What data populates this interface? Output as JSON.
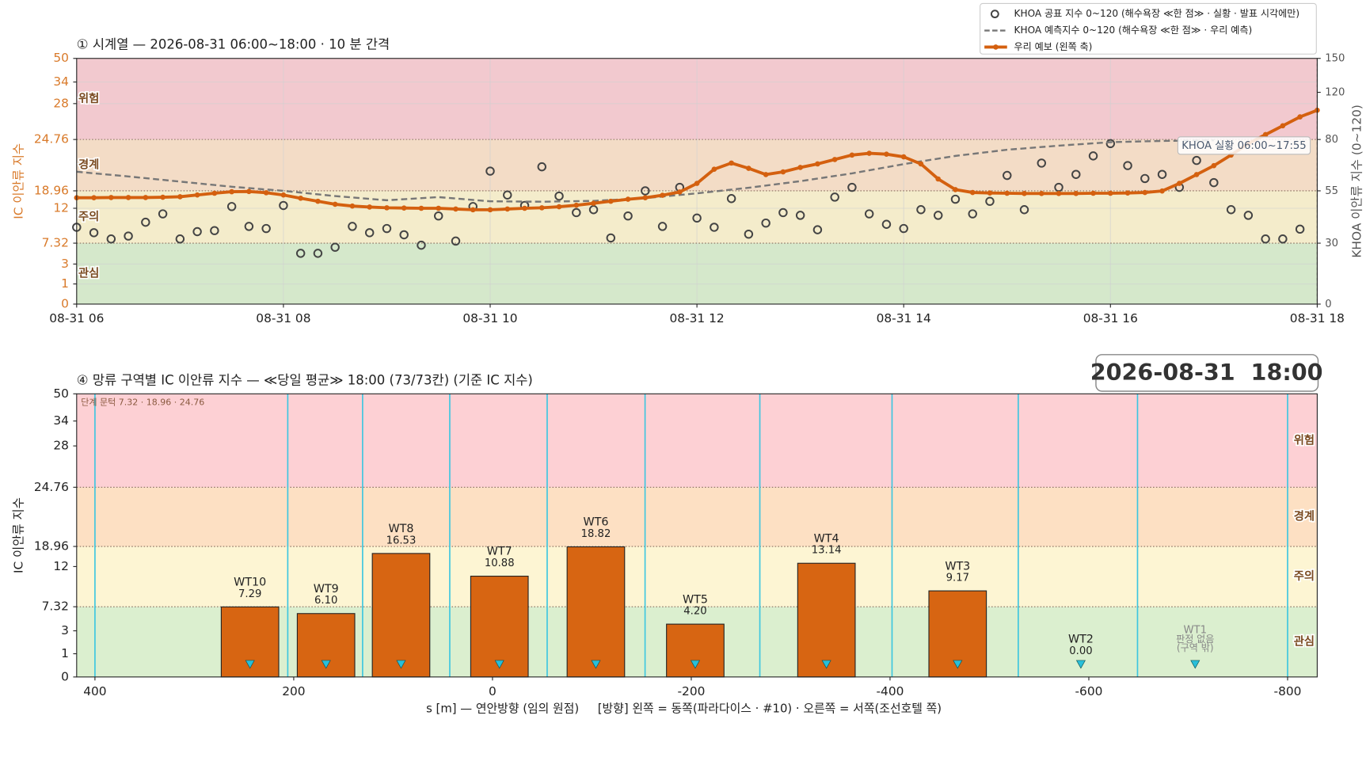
{
  "chart_data": [
    {
      "type": "line",
      "title": "① 시계열 — 2026-08-31 06:00~18:00 · 10 분 간격",
      "ylabel": "IC 이안류 지수",
      "y2label": "KHOA 이안류 지수 (0~120)",
      "x": [
        360,
        370,
        380,
        390,
        400,
        410,
        420,
        430,
        440,
        450,
        460,
        470,
        480,
        490,
        500,
        510,
        520,
        530,
        540,
        550,
        560,
        570,
        580,
        590,
        600,
        610,
        620,
        630,
        640,
        650,
        660,
        670,
        680,
        690,
        700,
        710,
        720,
        730,
        740,
        750,
        760,
        770,
        780,
        790,
        800,
        810,
        820,
        830,
        840,
        850,
        860,
        870,
        880,
        890,
        900,
        910,
        920,
        930,
        940,
        950,
        960,
        970,
        980,
        990,
        1000,
        1010,
        1020,
        1030,
        1040,
        1050,
        1060,
        1070,
        1080
      ],
      "xlim": [
        360,
        1080
      ],
      "xticks": [
        {
          "value": 360,
          "label": "08-31 06"
        },
        {
          "value": 480,
          "label": "08-31 08"
        },
        {
          "value": 600,
          "label": "08-31 10"
        },
        {
          "value": 720,
          "label": "08-31 12"
        },
        {
          "value": 840,
          "label": "08-31 14"
        },
        {
          "value": 960,
          "label": "08-31 16"
        },
        {
          "value": 1080,
          "label": "08-31 18"
        }
      ],
      "ylim": [
        0,
        50
      ],
      "yticks": [
        0,
        1,
        3,
        7.32,
        12,
        18.96,
        24.76,
        28,
        34,
        50
      ],
      "y2lim": [
        0,
        150
      ],
      "y2ticks": [
        0,
        30,
        55,
        80,
        120,
        150
      ],
      "grid": true,
      "legend": "upper right",
      "bands": [
        {
          "label": "관심",
          "from": 0,
          "to": 7.32,
          "color": "#d5e8cb"
        },
        {
          "label": "주의",
          "from": 7.32,
          "to": 18.96,
          "color": "#f4eccb"
        },
        {
          "label": "경계",
          "from": 18.96,
          "to": 24.76,
          "color": "#f3dcc6"
        },
        {
          "label": "위험",
          "from": 24.76,
          "to": 50,
          "color": "#f2c9cf"
        }
      ],
      "annotation": "KHOA 실황 06:00~17:55",
      "series": [
        {
          "name": "KHOA 공표 지수 0~120 (해수욕장 ≪한 점≫ · 실황 · 발표 시각에만)",
          "color": "#444444",
          "axis": "y2",
          "style": "marker",
          "values": [
            37.6,
            35,
            32,
            33.4,
            40,
            44,
            32,
            35.5,
            36,
            47.5,
            38,
            37,
            48,
            25,
            25,
            28,
            38,
            35,
            37,
            34,
            29,
            43,
            31,
            47.5,
            64.6,
            53,
            48,
            66.7,
            52.5,
            44.6,
            46,
            32.5,
            43,
            55,
            38,
            56.7,
            42,
            37.6,
            51.3,
            34.3,
            39.6,
            44.6,
            43.3,
            36.4,
            52,
            56.7,
            44,
            39,
            37,
            46,
            43.3,
            51,
            44,
            50,
            62.5,
            46,
            68.5,
            56.7,
            63,
            72,
            78,
            67.3,
            61,
            63,
            56.7,
            69.8,
            59,
            46,
            43.3,
            32,
            32,
            36.7,
            null
          ]
        },
        {
          "name": "KHOA 예측지수 0~120 (해수욕장 ≪한 점≫ · 우리 예측)",
          "color": "#777777",
          "axis": "y2",
          "style": "dashed",
          "x": [
            360,
            390,
            420,
            450,
            480,
            510,
            540,
            570,
            600,
            630,
            660,
            690,
            720,
            750,
            780,
            810,
            840,
            870,
            900,
            930,
            960,
            990,
            1020
          ],
          "values": [
            64.3,
            62,
            59.5,
            57,
            55,
            52.5,
            50.5,
            52,
            50,
            49.8,
            50.2,
            51.5,
            53.8,
            56.5,
            59.7,
            63.5,
            68,
            72,
            75,
            77,
            78.7,
            79.3,
            79.6
          ]
        },
        {
          "name": "우리 예보 (왼쪽 축)",
          "color": "#d4600f",
          "axis": "y",
          "style": "solid",
          "values": [
            16.2,
            16.2,
            16.3,
            16.3,
            16.3,
            16.4,
            16.6,
            17.3,
            18.0,
            18.6,
            18.7,
            18.2,
            17.3,
            16.0,
            14.8,
            13.6,
            12.9,
            12.5,
            12.2,
            12.1,
            12.0,
            12.0,
            11.9,
            11.8,
            11.8,
            11.9,
            12.0,
            12.2,
            12.6,
            13.2,
            14.0,
            14.8,
            15.6,
            16.2,
            17.2,
            18.5,
            19.8,
            21.4,
            22.1,
            21.5,
            20.8,
            21.1,
            21.6,
            22.0,
            22.5,
            23.0,
            23.2,
            23.1,
            22.8,
            22.0,
            20.3,
            19.1,
            18.3,
            18.1,
            18.0,
            17.9,
            17.9,
            17.9,
            17.9,
            18.0,
            18.0,
            18.1,
            18.3,
            18.9,
            19.8,
            20.8,
            21.8,
            23.0,
            24.3,
            25.2,
            26.0,
            26.8,
            27.4
          ]
        }
      ]
    },
    {
      "type": "bar",
      "title": "④ 망류 구역별 IC 이안류 지수 — ≪당일 평균≫ 18:00  (73/73칸)   (기준 IC 지수)",
      "timestamp": "2026-08-31  18:00",
      "threshold_note": "단계 문턱 7.32 · 18.96 · 24.76",
      "ylabel": "IC 이안류 지수",
      "xlabel": "s [m] — 연안방향 (임의 원점)     [방향] 왼쪽 = 동쪽(파라다이스 · #10) · 오른쪽 = 서쪽(조선호텔 쪽)",
      "categories": [
        "WT10",
        "WT9",
        "WT8",
        "WT7",
        "WT6",
        "WT5",
        "WT4",
        "WT3",
        "WT2",
        "WT1"
      ],
      "x": [
        244,
        167.5,
        92,
        -7,
        -104,
        -204,
        -336,
        -468,
        -592,
        -707
      ],
      "values": [
        7.29,
        6.1,
        16.53,
        10.88,
        18.82,
        4.2,
        13.14,
        9.17,
        0.0,
        null
      ],
      "value_labels": [
        "7.29",
        "6.10",
        "16.53",
        "10.88",
        "18.82",
        "4.20",
        "13.14",
        "9.17",
        "0.00",
        null
      ],
      "empty_note": [
        "판정 없음",
        "(구역 밖)"
      ],
      "color": "#d76512",
      "marker_color": "#29bfd9",
      "boundaries": [
        400,
        206,
        130.7,
        43,
        -55,
        -153.5,
        -269,
        -402,
        -529,
        -649,
        -800
      ],
      "xlim": [
        418.4,
        -829.8
      ],
      "xticks": [
        400,
        200,
        0,
        -200,
        -400,
        -600,
        -800
      ],
      "ylim": [
        0,
        50
      ],
      "yticks": [
        0,
        1,
        3,
        7.32,
        12,
        18.96,
        24.76,
        28,
        34,
        50
      ],
      "bands": [
        {
          "label": "관심",
          "from": 0,
          "to": 7.32,
          "color": "#dbefcf"
        },
        {
          "label": "주의",
          "from": 7.32,
          "to": 18.96,
          "color": "#fdf5d3"
        },
        {
          "label": "경계",
          "from": 18.96,
          "to": 24.76,
          "color": "#fde0c3"
        },
        {
          "label": "위험",
          "from": 24.76,
          "to": 50,
          "color": "#fdd0d4"
        }
      ]
    }
  ]
}
